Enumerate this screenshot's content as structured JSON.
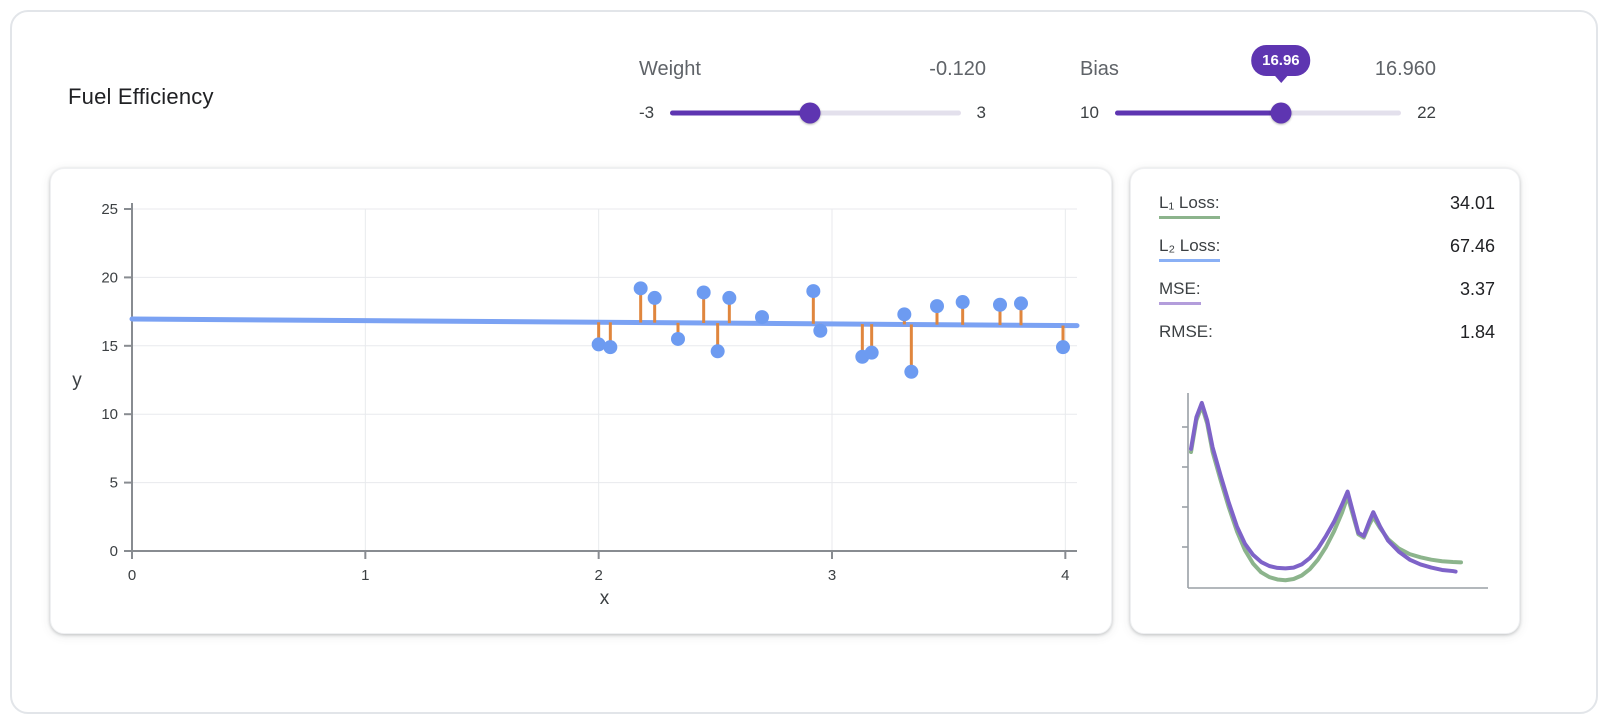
{
  "app": {
    "title": "Fuel Efficiency"
  },
  "controls": {
    "weight": {
      "label": "Weight",
      "display_value": "-0.120",
      "min_label": "-3",
      "max_label": "3",
      "min": -3,
      "max": 3,
      "value": -0.12
    },
    "bias": {
      "label": "Bias",
      "display_value": "16.960",
      "min_label": "10",
      "max_label": "22",
      "min": 10,
      "max": 22,
      "value": 16.96,
      "tooltip": "16.96"
    }
  },
  "loss_panel": {
    "rows": [
      {
        "label": "L₁ Loss:",
        "value": "34.01",
        "underline": "#8cb48c"
      },
      {
        "label": "L₂ Loss:",
        "value": "67.46",
        "underline": "#8ab0f5"
      },
      {
        "label": "MSE:",
        "value": "3.37",
        "underline": "#b39ddb"
      },
      {
        "label": "RMSE:",
        "value": "1.84",
        "underline": ""
      }
    ]
  },
  "colors": {
    "accent_purple": "#5e35b1",
    "point_blue": "#6d9bf1",
    "line_blue": "#7ba2f3",
    "residual_orange": "#e0863d",
    "l1_green": "#8cb48c",
    "mse_purple": "#7e63c8",
    "axis_gray": "#888c91",
    "grid_gray": "#e8eaed"
  },
  "chart_data": [
    {
      "type": "scatter",
      "title": "Fuel Efficiency model fit with residuals",
      "xlabel": "x",
      "ylabel": "y",
      "xlim": [
        0,
        4.05
      ],
      "ylim": [
        0,
        25
      ],
      "xticks": [
        0,
        1,
        2,
        3,
        4
      ],
      "yticks": [
        0,
        5,
        10,
        15,
        20,
        25
      ],
      "grid": true,
      "model_line": {
        "weight": -0.12,
        "bias": 16.96
      },
      "points": [
        [
          2.0,
          15.1
        ],
        [
          2.05,
          14.9
        ],
        [
          2.18,
          19.2
        ],
        [
          2.24,
          18.5
        ],
        [
          2.34,
          15.5
        ],
        [
          2.45,
          18.9
        ],
        [
          2.51,
          14.6
        ],
        [
          2.56,
          18.5
        ],
        [
          2.7,
          17.1
        ],
        [
          2.92,
          19.0
        ],
        [
          2.95,
          16.1
        ],
        [
          3.13,
          14.2
        ],
        [
          3.17,
          14.5
        ],
        [
          3.31,
          17.3
        ],
        [
          3.34,
          13.1
        ],
        [
          3.45,
          17.9
        ],
        [
          3.56,
          18.2
        ],
        [
          3.72,
          18.0
        ],
        [
          3.81,
          18.1
        ],
        [
          3.99,
          14.9
        ]
      ],
      "point_color": "#6d9bf1",
      "line_color": "#7ba2f3",
      "residual_color": "#e0863d"
    },
    {
      "type": "line",
      "title": "Loss curves",
      "xlim": [
        0,
        100
      ],
      "ylim": [
        0,
        12
      ],
      "legend_position": "none",
      "series": [
        {
          "name": "L1 Loss",
          "color": "#8cb48c",
          "x": [
            0,
            2,
            4,
            6,
            8,
            11,
            14,
            17,
            20,
            23,
            26,
            29,
            32,
            35,
            38,
            41,
            44,
            47,
            50,
            53,
            56,
            58,
            60,
            62,
            64,
            66,
            67.5,
            70,
            73,
            77,
            81,
            85,
            89,
            93,
            97,
            100
          ],
          "y": [
            8.4,
            10.4,
            11.3,
            10.2,
            8.4,
            6.6,
            4.9,
            3.4,
            2.2,
            1.35,
            0.8,
            0.5,
            0.35,
            0.3,
            0.38,
            0.6,
            1.0,
            1.6,
            2.4,
            3.4,
            4.6,
            5.6,
            4.4,
            3.2,
            3.0,
            3.8,
            4.3,
            3.6,
            2.9,
            2.3,
            1.95,
            1.75,
            1.6,
            1.5,
            1.45,
            1.43
          ]
        },
        {
          "name": "MSE",
          "color": "#7e63c8",
          "x": [
            0,
            2,
            4,
            6,
            8,
            11,
            14,
            17,
            20,
            23,
            26,
            29,
            32,
            35,
            38,
            41,
            44,
            47,
            50,
            53,
            56,
            58,
            60,
            62,
            64,
            66,
            67.5,
            70,
            73,
            77,
            81,
            85,
            89,
            93,
            97,
            98
          ],
          "y": [
            8.6,
            10.6,
            11.5,
            10.4,
            8.7,
            6.9,
            5.2,
            3.7,
            2.6,
            1.9,
            1.45,
            1.2,
            1.08,
            1.05,
            1.1,
            1.3,
            1.7,
            2.3,
            3.1,
            4.0,
            5.1,
            5.9,
            4.6,
            3.3,
            3.1,
            4.0,
            4.6,
            3.7,
            2.8,
            2.1,
            1.6,
            1.3,
            1.1,
            0.95,
            0.88,
            0.85
          ]
        }
      ]
    }
  ]
}
